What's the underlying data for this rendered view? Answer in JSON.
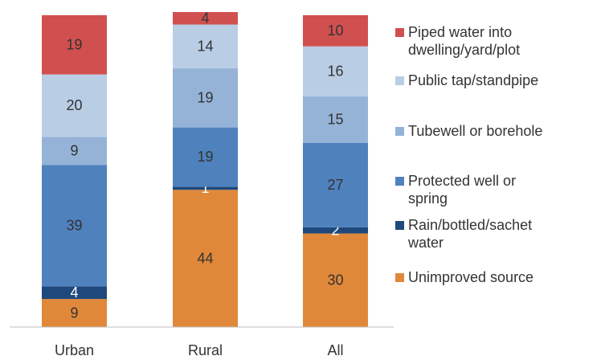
{
  "chart_data": {
    "type": "stacked_bar",
    "categories": [
      "Urban",
      "Rural",
      "All"
    ],
    "series": [
      {
        "name": "Unimproved source",
        "color": "#e0883a",
        "values": [
          9,
          44,
          30
        ]
      },
      {
        "name": "Rain/bottled/sachet water",
        "color": "#1f497d",
        "values": [
          4,
          1,
          2
        ]
      },
      {
        "name": "Protected well or spring",
        "color": "#4f81bd",
        "values": [
          39,
          19,
          27
        ]
      },
      {
        "name": "Tubewell or borehole",
        "color": "#95b3d7",
        "values": [
          9,
          19,
          15
        ]
      },
      {
        "name": "Public tap/standpipe",
        "color": "#b9cde5",
        "values": [
          20,
          14,
          16
        ]
      },
      {
        "name": "Piped water into dwelling/yard/plot",
        "color": "#d0504f",
        "values": [
          19,
          4,
          10
        ]
      }
    ],
    "legend": "right"
  }
}
